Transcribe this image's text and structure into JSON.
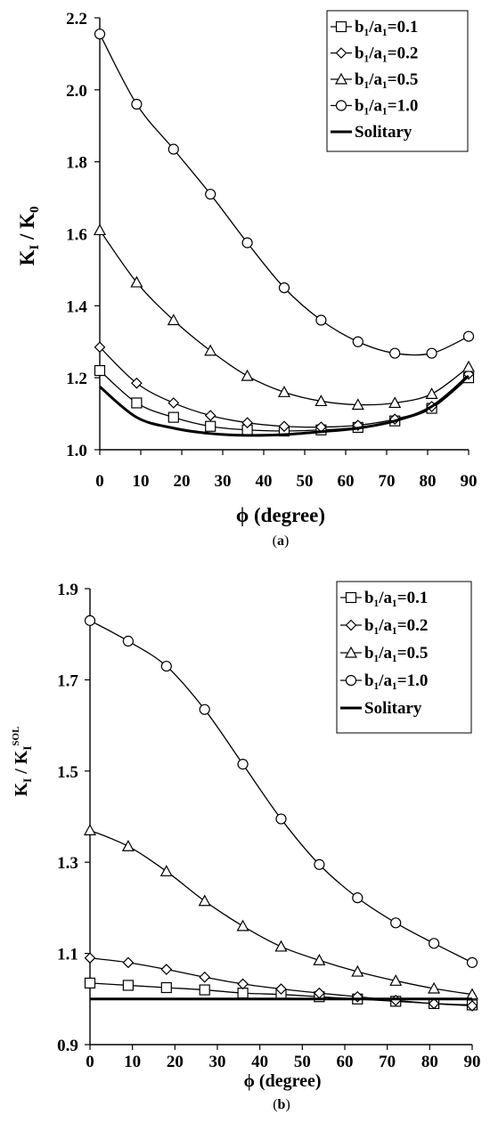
{
  "chart_data": [
    {
      "type": "line",
      "caption_letter": "a",
      "xlabel": "ϕ (degree)",
      "ylabel_main": "K",
      "ylabel_sub1": "I",
      "ylabel_mid": " / K",
      "ylabel_sub2": "0",
      "ylabel_sup2": "",
      "xlim": [
        0,
        90
      ],
      "ylim": [
        1.0,
        2.2
      ],
      "x_ticks": [
        0,
        10,
        20,
        30,
        40,
        50,
        60,
        70,
        80,
        90
      ],
      "y_ticks": [
        "1.0",
        "1.2",
        "1.4",
        "1.6",
        "1.8",
        "2.0",
        "2.2"
      ],
      "legend_position": "top-right",
      "series": [
        {
          "name": "b₁/a₁=0.1",
          "marker": "square",
          "x": [
            0,
            9,
            18,
            27,
            36,
            45,
            54,
            63,
            72,
            81,
            90
          ],
          "y": [
            1.22,
            1.13,
            1.09,
            1.065,
            1.055,
            1.052,
            1.055,
            1.062,
            1.08,
            1.115,
            1.2
          ]
        },
        {
          "name": "b₁/a₁=0.2",
          "marker": "diamond",
          "x": [
            0,
            9,
            18,
            27,
            36,
            45,
            54,
            63,
            72,
            81,
            90
          ],
          "y": [
            1.285,
            1.185,
            1.13,
            1.095,
            1.075,
            1.065,
            1.063,
            1.068,
            1.085,
            1.12,
            1.21
          ]
        },
        {
          "name": "b₁/a₁=0.5",
          "marker": "triangle",
          "x": [
            0,
            9,
            18,
            27,
            36,
            45,
            54,
            63,
            72,
            81,
            90
          ],
          "y": [
            1.61,
            1.465,
            1.36,
            1.275,
            1.205,
            1.16,
            1.135,
            1.125,
            1.13,
            1.155,
            1.23
          ]
        },
        {
          "name": "b₁/a₁=1.0",
          "marker": "circle",
          "x": [
            0,
            9,
            18,
            27,
            36,
            45,
            54,
            63,
            72,
            81,
            90
          ],
          "y": [
            2.155,
            1.96,
            1.835,
            1.71,
            1.575,
            1.45,
            1.36,
            1.3,
            1.268,
            1.268,
            1.315
          ]
        },
        {
          "name": "Solitary",
          "marker": "none",
          "x": [
            0,
            9,
            18,
            27,
            36,
            45,
            54,
            63,
            72,
            81,
            90
          ],
          "y": [
            1.175,
            1.09,
            1.06,
            1.045,
            1.04,
            1.042,
            1.05,
            1.06,
            1.08,
            1.12,
            1.205
          ]
        }
      ]
    },
    {
      "type": "line",
      "caption_letter": "b",
      "xlabel": "ϕ (degree)",
      "ylabel_main": "K",
      "ylabel_sub1": "I",
      "ylabel_mid": " / K",
      "ylabel_sub2": "I",
      "ylabel_sup2": "SOL",
      "xlim": [
        0,
        90
      ],
      "ylim": [
        0.9,
        1.9
      ],
      "x_ticks": [
        0,
        10,
        20,
        30,
        40,
        50,
        60,
        70,
        80,
        90
      ],
      "y_ticks": [
        "0.9",
        "1.1",
        "1.3",
        "1.5",
        "1.7",
        "1.9"
      ],
      "legend_position": "top-right",
      "series": [
        {
          "name": "b₁/a₁=0.1",
          "marker": "square",
          "x": [
            0,
            9,
            18,
            27,
            36,
            45,
            54,
            63,
            72,
            81,
            90
          ],
          "y": [
            1.035,
            1.03,
            1.025,
            1.02,
            1.013,
            1.01,
            1.005,
            1.0,
            0.995,
            0.99,
            0.987
          ]
        },
        {
          "name": "b₁/a₁=0.2",
          "marker": "diamond",
          "x": [
            0,
            9,
            18,
            27,
            36,
            45,
            54,
            63,
            72,
            81,
            90
          ],
          "y": [
            1.09,
            1.08,
            1.065,
            1.048,
            1.033,
            1.022,
            1.013,
            1.005,
            0.997,
            0.99,
            0.985
          ]
        },
        {
          "name": "b₁/a₁=0.5",
          "marker": "triangle",
          "x": [
            0,
            9,
            18,
            27,
            36,
            45,
            54,
            63,
            72,
            81,
            90
          ],
          "y": [
            1.37,
            1.335,
            1.28,
            1.215,
            1.16,
            1.115,
            1.085,
            1.06,
            1.04,
            1.023,
            1.01
          ]
        },
        {
          "name": "b₁/a₁=1.0",
          "marker": "circle",
          "x": [
            0,
            9,
            18,
            27,
            36,
            45,
            54,
            63,
            72,
            81,
            90
          ],
          "y": [
            1.83,
            1.785,
            1.73,
            1.635,
            1.515,
            1.395,
            1.295,
            1.222,
            1.167,
            1.122,
            1.08
          ]
        },
        {
          "name": "Solitary",
          "marker": "none",
          "x": [
            0,
            90
          ],
          "y": [
            1.0,
            1.0
          ]
        }
      ]
    }
  ]
}
